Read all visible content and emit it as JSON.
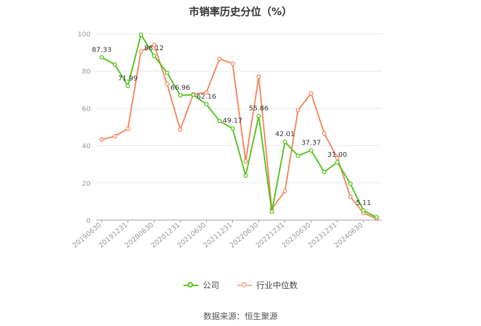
{
  "chart_data": {
    "type": "line",
    "title": "市销率历史分位（%）",
    "ylim": [
      0,
      100
    ],
    "y_ticks": [
      "0",
      "20",
      "40",
      "60",
      "80",
      "100"
    ],
    "x_labels": [
      "20190630",
      "20191231",
      "20200630",
      "20201231",
      "20210630",
      "20211231",
      "20220630",
      "20221231",
      "20230630",
      "20231231",
      "20240630"
    ],
    "grid": true,
    "legend_position": "bottom",
    "series": [
      {
        "name": "公司",
        "color": "#52c41a",
        "values": [
          87.33,
          83.5,
          71.99,
          99.5,
          88.12,
          79,
          66.96,
          67.2,
          62.16,
          53.2,
          49.17,
          23.8,
          55.86,
          4.5,
          42.01,
          34.5,
          37.37,
          25.8,
          31.0,
          19.5,
          5.11,
          1.5
        ],
        "labels": [
          "87.33",
          "",
          "71.99",
          "",
          "88.12",
          "",
          "66.96",
          "",
          "62.16",
          "",
          "49.17",
          "",
          "55.86",
          "",
          "42.01",
          "",
          "37.37",
          "",
          "31.00",
          "",
          "5.11",
          ""
        ]
      },
      {
        "name": "行业中位数",
        "color": "#f4875d",
        "values": [
          43.2,
          45,
          49,
          90.5,
          94,
          73,
          48.5,
          67.5,
          68.5,
          86.5,
          84,
          31.5,
          77,
          6,
          15.5,
          59,
          68,
          46.5,
          33.5,
          12.5,
          3.8,
          0.7
        ]
      }
    ]
  },
  "legend": {
    "company": "公司",
    "industry": "行业中位数"
  },
  "source": "数据来源：恒生聚源"
}
